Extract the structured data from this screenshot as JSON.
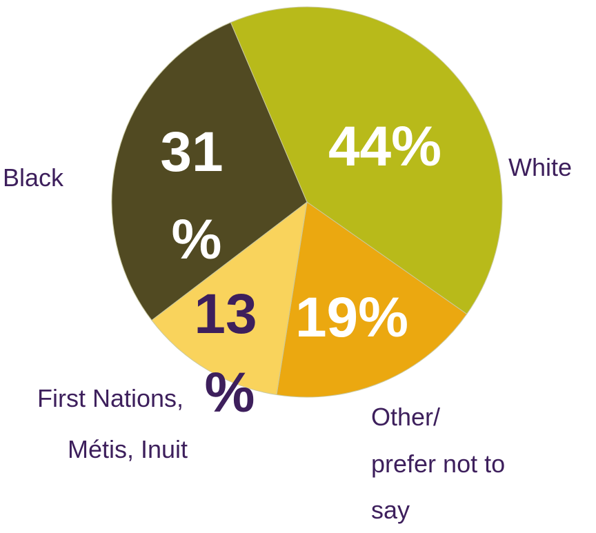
{
  "chart_data": {
    "type": "pie",
    "start_angle_deg": -23,
    "direction": "clockwise",
    "slices": [
      {
        "label": "White",
        "value": 44,
        "value_label": "44%",
        "color": "#b8ba1a",
        "value_label_color": "#ffffff"
      },
      {
        "label": "Other/ prefer not to say",
        "label_lines": [
          "Other/",
          "prefer not to",
          "say"
        ],
        "value": 19,
        "value_label": "19%",
        "color": "#eba810",
        "value_label_color": "#ffffff"
      },
      {
        "label": "First Nations, Métis, Inuit",
        "label_lines": [
          "First Nations,",
          "Métis, Inuit"
        ],
        "value": 13,
        "value_label_lines": [
          "13",
          "%"
        ],
        "color": "#f9d35c",
        "value_label_color": "#3d1f5c"
      },
      {
        "label": "Black",
        "value": 31,
        "value_label_lines": [
          "31",
          "%"
        ],
        "color": "#514a22",
        "value_label_color": "#ffffff"
      }
    ]
  }
}
